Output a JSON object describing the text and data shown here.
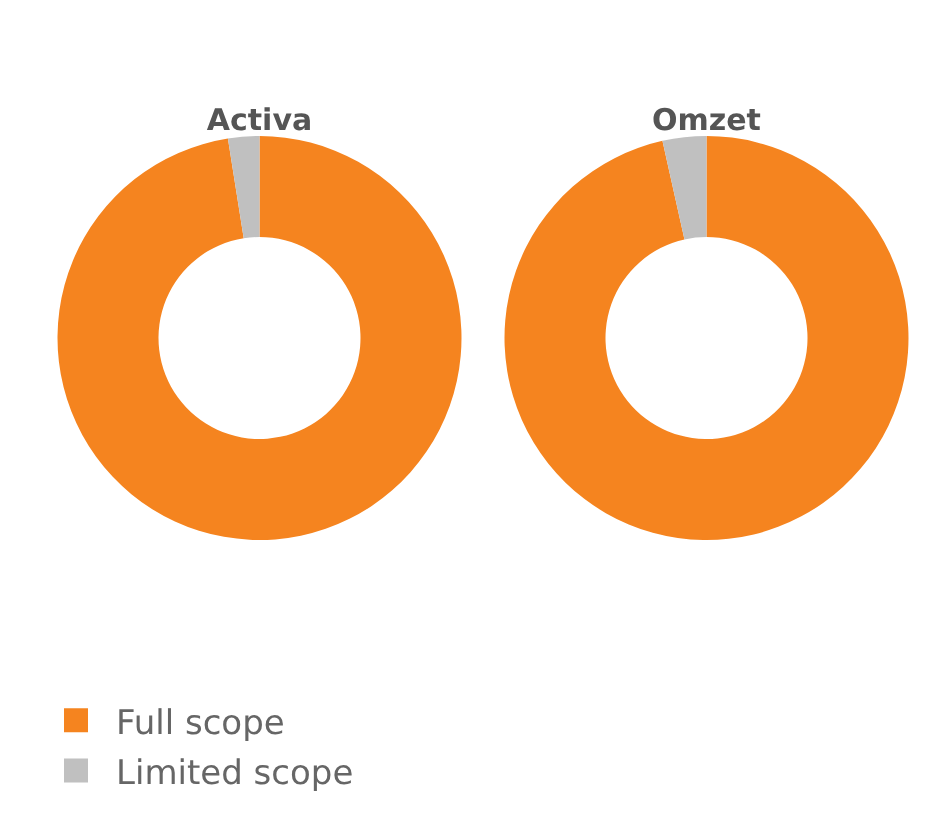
{
  "chart_data": {
    "type": "donut",
    "categories": [
      "Full scope",
      "Limited scope"
    ],
    "colors": [
      "#f5841f",
      "#c0c0c0"
    ],
    "legend": "bottom left",
    "series": [
      {
        "name": "Activa",
        "values": [
          97.5,
          2.5
        ]
      },
      {
        "name": "Omzet",
        "values": [
          96.5,
          3.5
        ]
      }
    ]
  }
}
